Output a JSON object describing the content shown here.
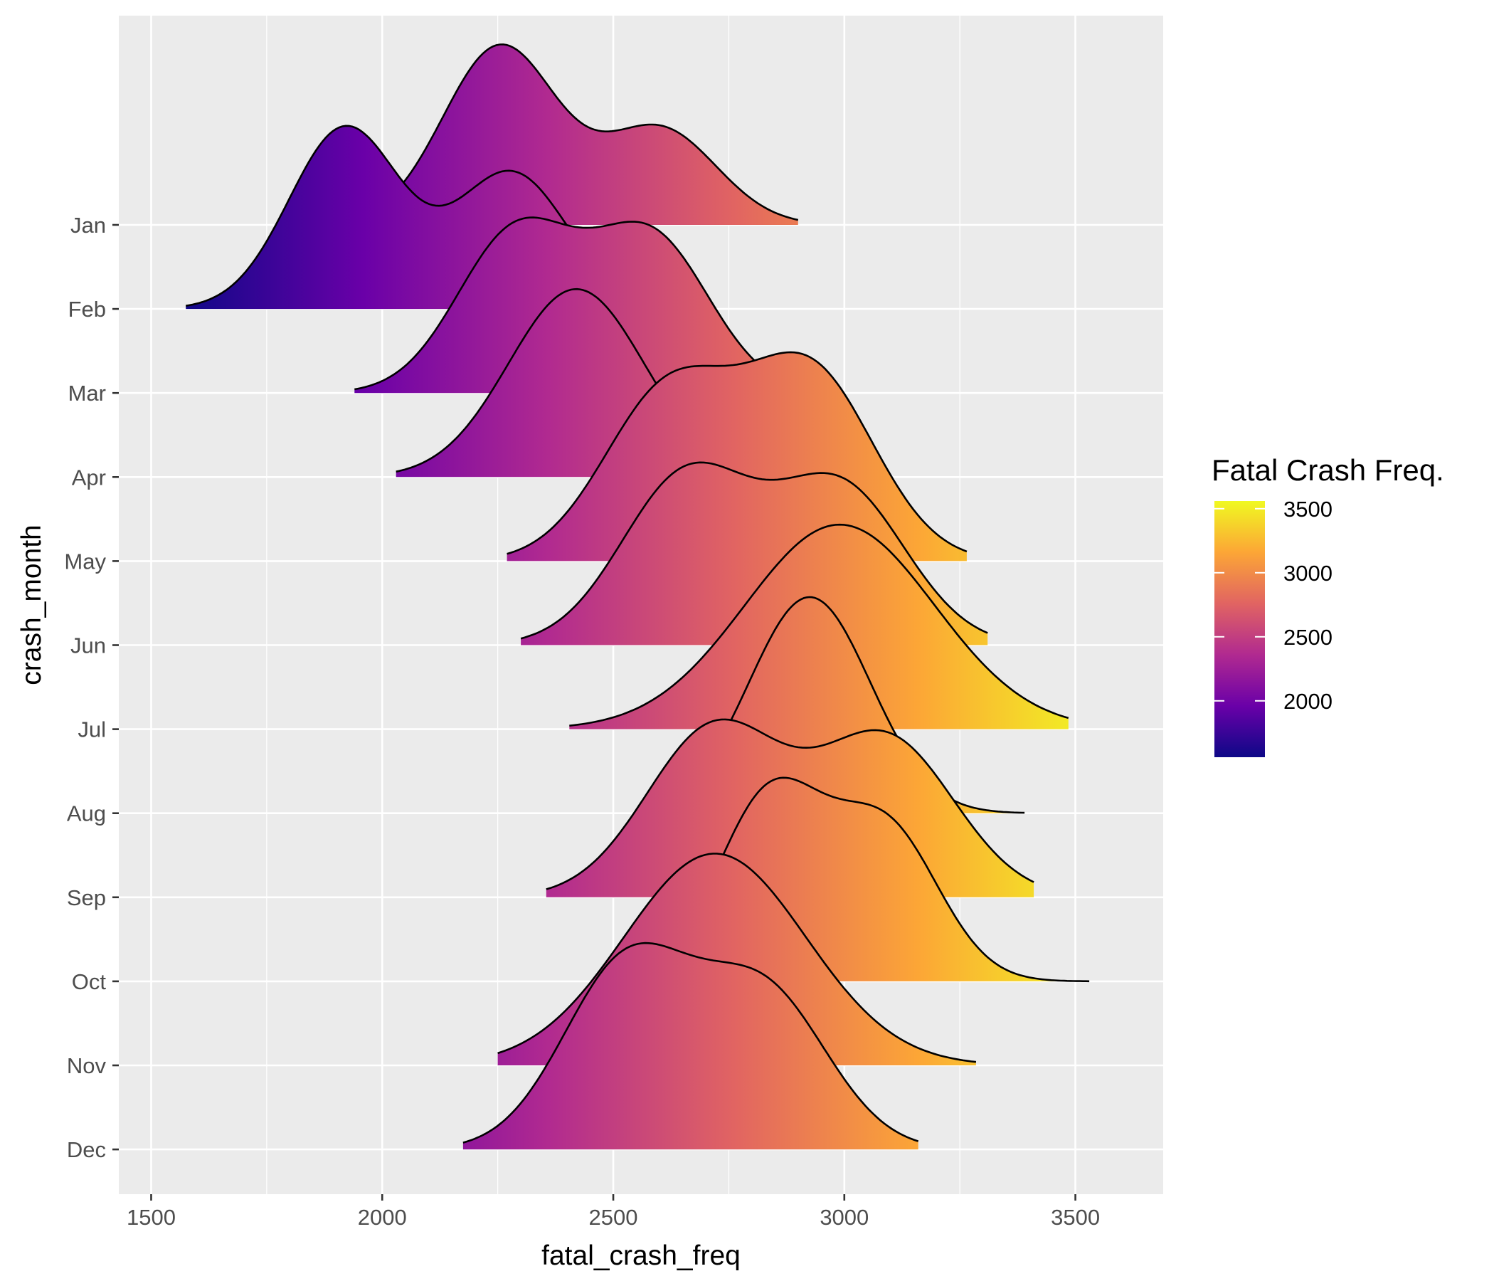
{
  "chart_data": {
    "type": "ridgeline",
    "title": "",
    "xlabel": "fatal_crash_freq",
    "ylabel": "crash_month",
    "xlim": [
      1430,
      3690
    ],
    "x_ticks": [
      1500,
      2000,
      2500,
      3000,
      3500
    ],
    "x_tick_labels": [
      "1500",
      "2000",
      "2500",
      "3000",
      "3500"
    ],
    "categories": [
      "Jan",
      "Feb",
      "Mar",
      "Apr",
      "May",
      "Jun",
      "Jul",
      "Aug",
      "Sep",
      "Oct",
      "Nov",
      "Dec"
    ],
    "grid": true,
    "legend": {
      "title": "Fatal Crash Freq.",
      "position": "right",
      "range": [
        1560,
        3560
      ],
      "ticks": [
        2000,
        2500,
        3000,
        3500
      ],
      "tick_labels": [
        "2000",
        "2500",
        "3000",
        "3500"
      ],
      "palette": [
        "#0d0887",
        "#6a00a8",
        "#b12a90",
        "#e16462",
        "#fca636",
        "#f0f921"
      ]
    },
    "series": [
      {
        "month": "Jan",
        "min": 2020,
        "max": 2900,
        "peaks": [
          [
            2255,
            2.47
          ],
          [
            2600,
            1.33
          ]
        ]
      },
      {
        "month": "Feb",
        "min": 1575,
        "max": 2440,
        "peaks": [
          [
            1920,
            2.51
          ],
          [
            2280,
            1.88
          ]
        ]
      },
      {
        "month": "Mar",
        "min": 1940,
        "max": 2850,
        "peaks": [
          [
            2290,
            2.22
          ],
          [
            2580,
            2.15
          ]
        ]
      },
      {
        "month": "Apr",
        "min": 2030,
        "max": 2800,
        "peaks": [
          [
            2420,
            2.6
          ]
        ]
      },
      {
        "month": "May",
        "min": 2270,
        "max": 3265,
        "peaks": [
          [
            2620,
            2.35
          ],
          [
            2925,
            2.61
          ]
        ]
      },
      {
        "month": "Jun",
        "min": 2300,
        "max": 3310,
        "peaks": [
          [
            2660,
            2.35
          ],
          [
            2990,
            2.18
          ]
        ]
      },
      {
        "month": "Jul",
        "min": 2405,
        "max": 3485,
        "peaks": [
          [
            2990,
            2.83
          ]
        ]
      },
      {
        "month": "Aug",
        "min": 2700,
        "max": 3390,
        "peaks": [
          [
            2925,
            2.99
          ]
        ]
      },
      {
        "month": "Sep",
        "min": 2355,
        "max": 3410,
        "peaks": [
          [
            2720,
            2.35
          ],
          [
            3090,
            2.19
          ]
        ]
      },
      {
        "month": "Oct",
        "min": 2710,
        "max": 3530,
        "peaks": [
          [
            2840,
            2.57
          ],
          [
            3090,
            2.09
          ]
        ]
      },
      {
        "month": "Nov",
        "min": 2250,
        "max": 3285,
        "peaks": [
          [
            2720,
            2.93
          ]
        ]
      },
      {
        "month": "Dec",
        "min": 2175,
        "max": 3160,
        "peaks": [
          [
            2530,
            2.57
          ],
          [
            2825,
            2.16
          ]
        ]
      }
    ]
  }
}
